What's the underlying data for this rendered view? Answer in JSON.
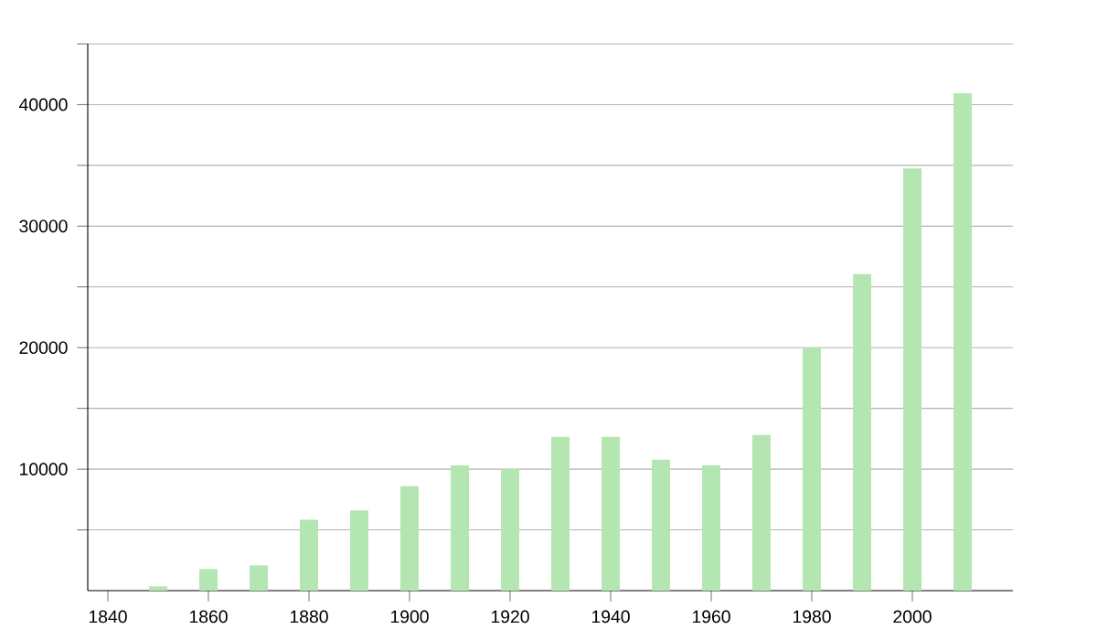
{
  "chart_data": {
    "type": "bar",
    "x": [
      1850,
      1860,
      1870,
      1880,
      1890,
      1900,
      1910,
      1920,
      1930,
      1940,
      1950,
      1960,
      1970,
      1980,
      1990,
      2000,
      2010
    ],
    "values": [
      350,
      1770,
      2080,
      5830,
      6610,
      8590,
      10310,
      10000,
      12660,
      12660,
      10780,
      10310,
      12810,
      20000,
      26050,
      34740,
      40940
    ],
    "color": "#b3e6b0",
    "xlim": [
      1836,
      2020
    ],
    "xticks": [
      1840,
      1860,
      1880,
      1900,
      1920,
      1940,
      1960,
      1980,
      2000
    ],
    "ylim": [
      0,
      45000
    ],
    "yticks": [
      {
        "value": 5000,
        "label": null
      },
      10000,
      {
        "value": 15000,
        "label": null
      },
      20000,
      {
        "value": 25000,
        "label": null
      },
      30000,
      {
        "value": 35000,
        "label": null
      },
      40000,
      {
        "value": 45000,
        "label": null
      }
    ],
    "grid": "y"
  }
}
